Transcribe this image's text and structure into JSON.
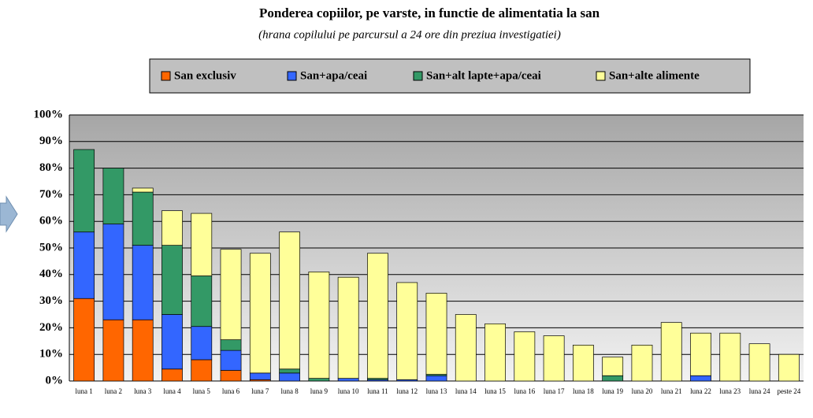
{
  "chart_data": {
    "type": "stacked_bar",
    "title": "Ponderea copiilor, pe varste, in functie de alimentatia la san",
    "subtitle": "(hrana copilului pe parcursul a 24 ore din preziua investigatiei)",
    "categories": [
      "luna 1",
      "luna 2",
      "luna 3",
      "luna 4",
      "luna 5",
      "luna 6",
      "luna 7",
      "luna 8",
      "luna 9",
      "luna 10",
      "luna 11",
      "luna 12",
      "luna 13",
      "luna 14",
      "luna 15",
      "luna 16",
      "luna 17",
      "luna 18",
      "luna 19",
      "luna 20",
      "luna 21",
      "luna 22",
      "luna 23",
      "luna 24",
      "peste 24"
    ],
    "series": [
      {
        "name": "San exclusiv",
        "color": "#ff6600",
        "values": [
          31,
          23,
          23,
          4.5,
          8,
          4,
          0.5,
          0,
          0,
          0,
          0,
          0,
          0,
          0,
          0,
          0,
          0,
          0,
          0,
          0,
          0,
          0,
          0,
          0,
          0
        ]
      },
      {
        "name": "San+apa/ceai",
        "color": "#3366ff",
        "values": [
          25,
          36,
          28,
          20.5,
          12.5,
          7.5,
          2.5,
          3,
          0,
          1,
          0.5,
          0.5,
          2,
          0,
          0,
          0,
          0,
          0,
          0,
          0,
          0,
          2,
          0,
          0,
          0
        ]
      },
      {
        "name": "San+alt lapte+apa/ceai",
        "color": "#339966",
        "values": [
          31,
          21,
          20,
          26,
          19,
          4,
          0,
          1.5,
          1,
          0,
          0.5,
          0,
          0.5,
          0,
          0,
          0,
          0,
          0,
          2,
          0,
          0,
          0,
          0,
          0,
          0
        ]
      },
      {
        "name": "San+alte alimente",
        "color": "#ffff99",
        "values": [
          0,
          0,
          1.5,
          13,
          23.5,
          34,
          45,
          51.5,
          40,
          38,
          47,
          36.5,
          30.5,
          25,
          21.5,
          18.5,
          17,
          13.5,
          7,
          13.5,
          22,
          16,
          18,
          14,
          10
        ]
      }
    ],
    "ylim": [
      0,
      100
    ],
    "yticks": [
      {
        "value": 0,
        "label": "0%"
      },
      {
        "value": 10,
        "label": "10%"
      },
      {
        "value": 20,
        "label": "20%"
      },
      {
        "value": 30,
        "label": "30%"
      },
      {
        "value": 40,
        "label": "40%"
      },
      {
        "value": 50,
        "label": "50%"
      },
      {
        "value": 60,
        "label": "60%"
      },
      {
        "value": 70,
        "label": "70%"
      },
      {
        "value": 80,
        "label": "80%"
      },
      {
        "value": 90,
        "label": "90%"
      },
      {
        "value": 100,
        "label": "100%"
      }
    ],
    "grid": true
  }
}
